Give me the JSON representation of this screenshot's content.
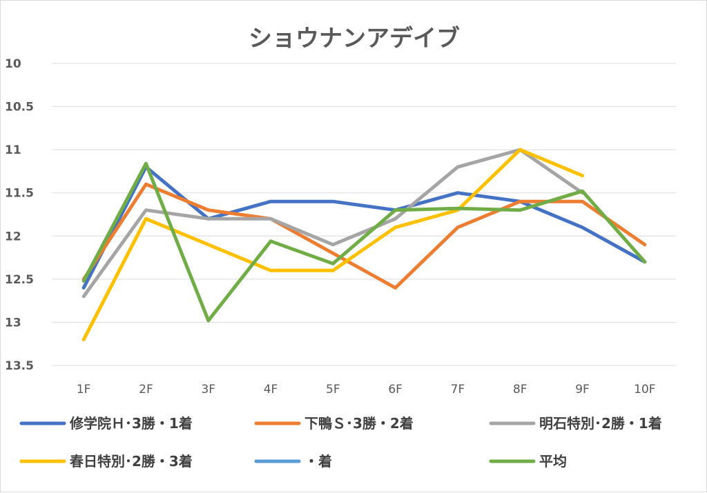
{
  "chart_data": {
    "type": "line",
    "title": "ショウナンアデイブ",
    "xlabel": "",
    "ylabel": "",
    "categories": [
      "1F",
      "2F",
      "3F",
      "4F",
      "5F",
      "6F",
      "7F",
      "8F",
      "9F",
      "10F"
    ],
    "yticks": [
      "10",
      "10.5",
      "11",
      "11.5",
      "12",
      "12.5",
      "13",
      "13.5"
    ],
    "ylim": [
      10,
      13.5
    ],
    "y_inverted": true,
    "grid": true,
    "legend_position": "bottom",
    "series": [
      {
        "name": "修学院Ｈ･3勝・1着",
        "color": "#4472C4",
        "values": [
          12.6,
          11.2,
          11.8,
          11.6,
          11.6,
          11.7,
          11.5,
          11.6,
          11.9,
          12.3
        ]
      },
      {
        "name": "下鴨Ｓ･3勝・2着",
        "color": "#ED7D31",
        "values": [
          12.5,
          11.4,
          11.7,
          11.8,
          12.2,
          12.6,
          11.9,
          11.6,
          11.6,
          12.1
        ]
      },
      {
        "name": "明石特別･2勝・1着",
        "color": "#A5A5A5",
        "values": [
          12.7,
          11.7,
          11.8,
          11.8,
          12.1,
          11.8,
          11.2,
          11.0,
          11.5,
          null
        ]
      },
      {
        "name": "春日特別･2勝・3着",
        "color": "#FFC000",
        "values": [
          13.2,
          11.8,
          12.1,
          12.4,
          12.4,
          11.9,
          11.7,
          11.0,
          11.3,
          null
        ]
      },
      {
        "name": "・着",
        "color": "#5B9BD5",
        "values": [
          null,
          null,
          null,
          null,
          null,
          null,
          null,
          null,
          null,
          null
        ]
      },
      {
        "name": "平均",
        "color": "#70AD47",
        "values": [
          12.52,
          11.16,
          12.98,
          12.06,
          12.32,
          11.7,
          11.68,
          11.7,
          11.48,
          12.3
        ]
      }
    ]
  }
}
